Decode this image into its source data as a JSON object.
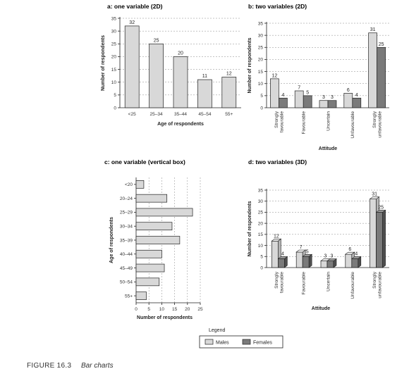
{
  "caption": {
    "number": "FIGURE 16.3",
    "text": "Bar charts"
  },
  "colors": {
    "males": "#d8d8d8",
    "females": "#7a7a7a",
    "males_side": "#b4b4b4",
    "females_side": "#4e4e4e",
    "males_top": "#ededed",
    "females_top": "#9a9a9a"
  },
  "legend": {
    "title": "Legend",
    "items": [
      "Males",
      "Females"
    ]
  },
  "chart_data": [
    {
      "id": "a",
      "type": "bar",
      "title": "a: one variable (2D)",
      "categories": [
        "<25",
        "25–34",
        "35–44",
        "45–54",
        "55+"
      ],
      "values": [
        32,
        25,
        20,
        11,
        12
      ],
      "xlabel": "Age of respondents",
      "ylabel": "Number of respondents",
      "ylim": [
        0,
        35
      ],
      "yticks": [
        0,
        5,
        10,
        15,
        20,
        25,
        30,
        35
      ],
      "grid": true
    },
    {
      "id": "b",
      "type": "bar",
      "title": "b: two variables (2D)",
      "categories": [
        "Strongly favourable",
        "Favourable",
        "Uncertain",
        "Unfavourable",
        "Strongly unfavourable"
      ],
      "series": [
        {
          "name": "Males",
          "values": [
            12,
            7,
            3,
            6,
            31
          ]
        },
        {
          "name": "Females",
          "values": [
            4,
            5,
            3,
            4,
            25
          ]
        }
      ],
      "xlabel": "Attitude",
      "ylabel": "Number of respondents",
      "ylim": [
        0,
        35
      ],
      "yticks": [
        0,
        5,
        10,
        15,
        20,
        25,
        30,
        35
      ],
      "grid": true
    },
    {
      "id": "c",
      "type": "bar",
      "orientation": "horizontal",
      "title": "c: one variable (vertical box)",
      "categories": [
        "<20",
        "20–24",
        "25–29",
        "30–34",
        "35–39",
        "40–44",
        "45–49",
        "50–54",
        "55+"
      ],
      "values": [
        3,
        12,
        22,
        14,
        17,
        10,
        11,
        9,
        4
      ],
      "xlabel": "Number of respondents",
      "ylabel": "Age of respondents",
      "xlim": [
        0,
        25
      ],
      "xticks": [
        0,
        5,
        10,
        15,
        20,
        25
      ],
      "grid": true
    },
    {
      "id": "d",
      "type": "bar",
      "style": "3d",
      "title": "d: two variables (3D)",
      "categories": [
        "Strongly favourable",
        "Favourable",
        "Uncertain",
        "Unfavourable",
        "Strongly unfavourable"
      ],
      "series": [
        {
          "name": "Males",
          "values": [
            12,
            7,
            3,
            6,
            31
          ]
        },
        {
          "name": "Females",
          "values": [
            4,
            5,
            3,
            4,
            25
          ]
        }
      ],
      "xlabel": "Attitude",
      "ylabel": "Number of respondents",
      "ylim": [
        0,
        35
      ],
      "yticks": [
        0,
        5,
        10,
        15,
        20,
        25,
        30,
        35
      ],
      "grid": true
    }
  ]
}
